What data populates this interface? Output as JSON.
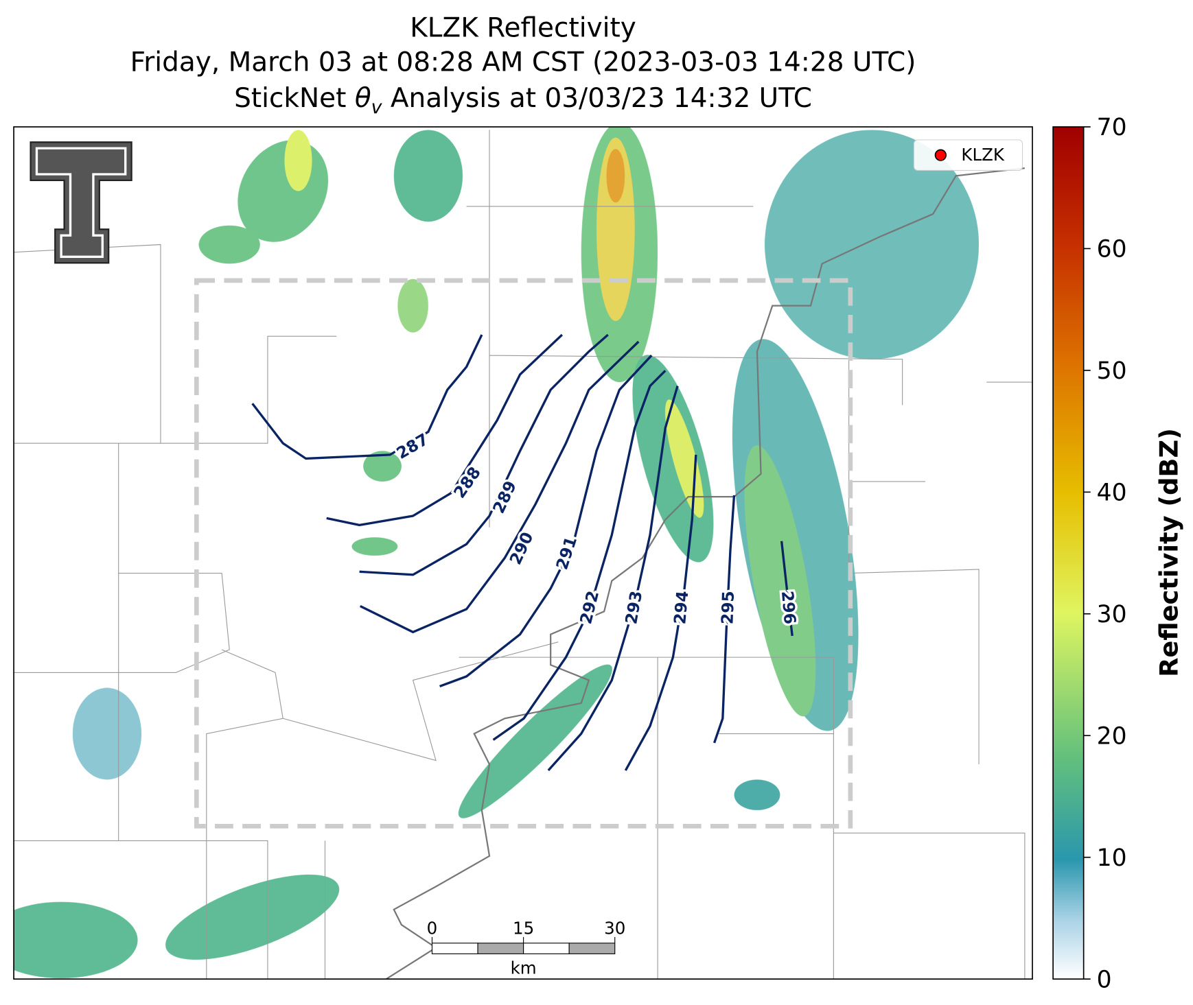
{
  "title": {
    "line1": "KLZK Reflectivity",
    "line2": "Friday, March 03 at 08:28 AM CST (2023-03-03 14:28 UTC)",
    "line3": {
      "prefix": "StickNet ",
      "symbol": "θ",
      "subscript": "v",
      "suffix": " Analysis at 03/03/23 14:32 UTC"
    }
  },
  "legend": {
    "label": "KLZK",
    "color": "#ff0000"
  },
  "contours": {
    "color": "#0a2463",
    "labels": [
      287,
      288,
      289,
      290,
      291,
      292,
      293,
      294,
      295,
      296
    ]
  },
  "colorbar": {
    "label": "Reflectivity (dBZ)",
    "lim": [
      0,
      70
    ],
    "ticks": [
      0,
      10,
      20,
      30,
      40,
      50,
      60,
      70
    ]
  },
  "scalebar": {
    "ticks": [
      0,
      15,
      30
    ],
    "unit": "km"
  }
}
